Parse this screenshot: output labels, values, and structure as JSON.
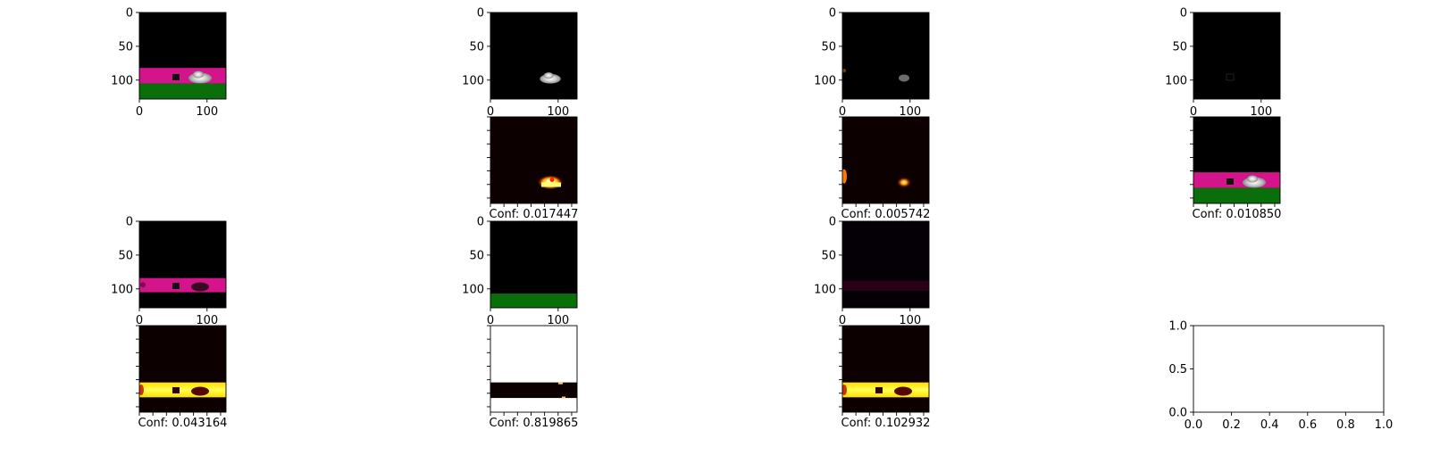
{
  "figure": {
    "rows": [
      [
        {
          "kind": "image",
          "render": "scene_full",
          "xticks": [
            "0",
            "100"
          ],
          "yticks": [
            "0",
            "50",
            "100"
          ]
        },
        {
          "kind": "image",
          "render": "car_only",
          "xticks": [
            "0",
            "100"
          ],
          "yticks": [
            "0",
            "50",
            "100"
          ]
        },
        {
          "kind": "image",
          "render": "car_dim",
          "xticks": [
            "0",
            "100"
          ],
          "yticks": [
            "0",
            "50",
            "100"
          ]
        },
        {
          "kind": "image",
          "render": "nearly_black",
          "xticks": [
            "0",
            "100"
          ],
          "yticks": [
            "0",
            "50",
            "100"
          ]
        }
      ],
      [
        {
          "kind": "blank"
        },
        {
          "kind": "heatmap",
          "render": "heat_car_bright",
          "caption": "Conf: 0.017447"
        },
        {
          "kind": "heatmap",
          "render": "heat_car_small",
          "caption": "Conf: 0.005742"
        },
        {
          "kind": "image",
          "render": "scene_full",
          "tickless": true,
          "caption": "Conf: 0.010850"
        }
      ],
      [
        {
          "kind": "image",
          "render": "road_dark_objects",
          "xticks": [
            "0",
            "100"
          ],
          "yticks": [
            "0",
            "50",
            "100"
          ]
        },
        {
          "kind": "image",
          "render": "grass_only",
          "xticks": [
            "0",
            "100"
          ],
          "yticks": [
            "0",
            "50",
            "100"
          ]
        },
        {
          "kind": "image",
          "render": "road_faint",
          "xticks": [
            "0",
            "100"
          ],
          "yticks": [
            "0",
            "50",
            "100"
          ]
        },
        {
          "kind": "blank"
        }
      ],
      [
        {
          "kind": "heatmap",
          "render": "heat_road",
          "caption": "Conf: 0.043164"
        },
        {
          "kind": "heatmap",
          "render": "heat_inverse",
          "caption": "Conf: 0.819865"
        },
        {
          "kind": "heatmap",
          "render": "heat_road",
          "caption": "Conf: 0.102932"
        },
        {
          "kind": "empty_axes",
          "xticks": [
            "0.0",
            "0.2",
            "0.4",
            "0.6",
            "0.8",
            "1.0"
          ],
          "yticks": [
            "0.0",
            "0.5",
            "1.0"
          ]
        }
      ]
    ]
  },
  "chart_data": {
    "type": "heatmap",
    "description_source": "grid of 4x4 subplots: segmentation images and saliency heatmaps",
    "image_axis_range": [
      0,
      128
    ],
    "image_ticks_x": [
      0,
      100
    ],
    "image_ticks_y": [
      0,
      50,
      100
    ],
    "confidences": [
      0.017447,
      0.005742,
      0.01085,
      0.043164,
      0.819865,
      0.102932
    ],
    "empty_axes": {
      "xlim": [
        0,
        1
      ],
      "ylim": [
        0,
        1
      ]
    },
    "colors": {
      "road": "#d4148a",
      "grass": "#0a6e0a",
      "background": "#000000",
      "heat_low": "#0d0000",
      "heat_high": "#ffff66"
    }
  }
}
